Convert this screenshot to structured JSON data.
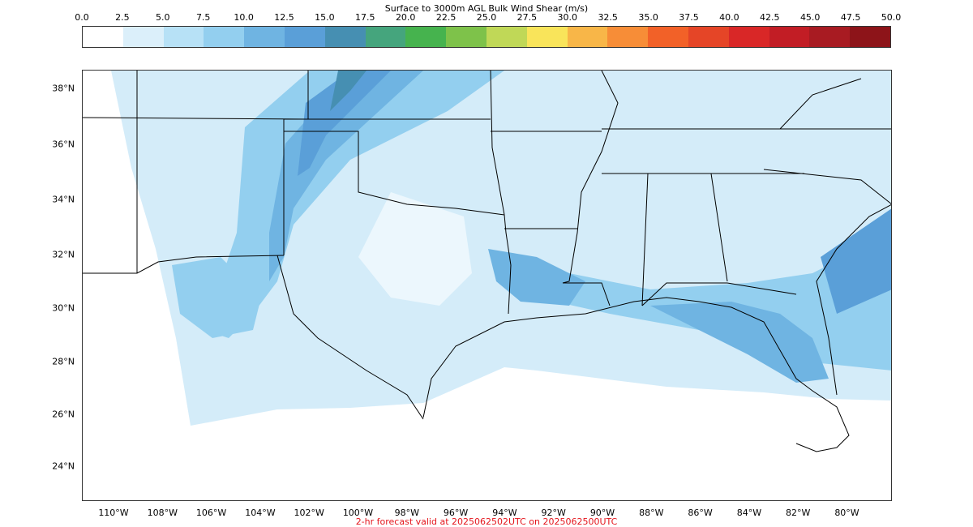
{
  "title": "Surface to 3000m AGL Bulk Wind Shear (m/s)",
  "colorbar": {
    "ticks": [
      "0.0",
      "2.5",
      "5.0",
      "7.5",
      "10.0",
      "12.5",
      "15.0",
      "17.5",
      "20.0",
      "22.5",
      "25.0",
      "27.5",
      "30.0",
      "32.5",
      "35.0",
      "37.5",
      "40.0",
      "42.5",
      "45.0",
      "47.5",
      "50.0"
    ],
    "colors": [
      "#ffffff",
      "#dbeffa",
      "#b7e1f6",
      "#93cfef",
      "#6fb4e2",
      "#5a9fd8",
      "#468fb2",
      "#45a57d",
      "#46b34e",
      "#7ec24a",
      "#c0d857",
      "#f9e45a",
      "#f8b648",
      "#f78d37",
      "#f26128",
      "#e54527",
      "#d92727",
      "#c21d25",
      "#a81b22",
      "#8d1419"
    ]
  },
  "map": {
    "latitude_labels": [
      "38°N",
      "36°N",
      "34°N",
      "32°N",
      "30°N",
      "28°N",
      "26°N",
      "24°N"
    ],
    "longitude_labels": [
      "110°W",
      "108°W",
      "106°W",
      "104°W",
      "102°W",
      "100°W",
      "98°W",
      "96°W",
      "94°W",
      "92°W",
      "90°W",
      "88°W",
      "86°W",
      "84°W",
      "82°W",
      "80°W"
    ]
  },
  "footer": "2-hr forecast valid at 2025062502UTC on 2025062500UTC"
}
